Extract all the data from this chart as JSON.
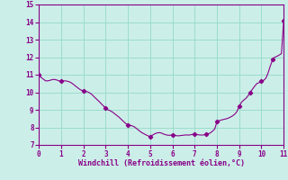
{
  "title": "",
  "xlabel": "Windchill (Refroidissement éolien,°C)",
  "ylabel": "",
  "xlim": [
    0,
    11
  ],
  "ylim": [
    7,
    15
  ],
  "xticks": [
    0,
    1,
    2,
    3,
    4,
    5,
    6,
    7,
    8,
    9,
    10,
    11
  ],
  "yticks": [
    7,
    8,
    9,
    10,
    11,
    12,
    13,
    14,
    15
  ],
  "background_color": "#cceee8",
  "grid_color": "#99ddcc",
  "line_color": "#880088",
  "marker_color": "#880088",
  "x": [
    0.0,
    0.1,
    0.2,
    0.3,
    0.4,
    0.5,
    0.6,
    0.7,
    0.8,
    0.9,
    1.0,
    1.1,
    1.2,
    1.3,
    1.4,
    1.5,
    1.6,
    1.7,
    1.8,
    1.9,
    2.0,
    2.1,
    2.2,
    2.3,
    2.4,
    2.5,
    2.6,
    2.7,
    2.8,
    2.9,
    3.0,
    3.1,
    3.2,
    3.3,
    3.4,
    3.5,
    3.6,
    3.7,
    3.8,
    3.9,
    4.0,
    4.1,
    4.2,
    4.3,
    4.4,
    4.5,
    4.6,
    4.7,
    4.8,
    4.9,
    5.0,
    5.1,
    5.2,
    5.3,
    5.4,
    5.5,
    5.6,
    5.7,
    5.8,
    5.9,
    6.0,
    6.1,
    6.2,
    6.3,
    6.4,
    6.5,
    6.6,
    6.7,
    6.8,
    6.9,
    7.0,
    7.1,
    7.2,
    7.3,
    7.4,
    7.5,
    7.6,
    7.7,
    7.8,
    7.9,
    8.0,
    8.1,
    8.2,
    8.3,
    8.4,
    8.5,
    8.6,
    8.7,
    8.8,
    8.9,
    9.0,
    9.1,
    9.2,
    9.3,
    9.4,
    9.5,
    9.6,
    9.7,
    9.8,
    9.9,
    10.0,
    10.1,
    10.2,
    10.3,
    10.4,
    10.5,
    10.6,
    10.7,
    10.8,
    10.9,
    11.0,
    11.1,
    11.2
  ],
  "y": [
    11.0,
    10.85,
    10.75,
    10.65,
    10.65,
    10.68,
    10.72,
    10.73,
    10.7,
    10.65,
    10.63,
    10.65,
    10.65,
    10.62,
    10.58,
    10.5,
    10.4,
    10.3,
    10.2,
    10.12,
    10.08,
    10.05,
    10.02,
    9.95,
    9.85,
    9.72,
    9.6,
    9.48,
    9.35,
    9.22,
    9.1,
    9.0,
    8.95,
    8.88,
    8.78,
    8.68,
    8.58,
    8.46,
    8.34,
    8.22,
    8.15,
    8.12,
    8.08,
    8.02,
    7.92,
    7.82,
    7.72,
    7.65,
    7.58,
    7.52,
    7.47,
    7.55,
    7.63,
    7.68,
    7.7,
    7.68,
    7.62,
    7.58,
    7.55,
    7.55,
    7.57,
    7.55,
    7.52,
    7.52,
    7.54,
    7.55,
    7.57,
    7.56,
    7.57,
    7.6,
    7.6,
    7.59,
    7.57,
    7.56,
    7.57,
    7.6,
    7.63,
    7.68,
    7.78,
    7.9,
    8.32,
    8.38,
    8.42,
    8.45,
    8.48,
    8.52,
    8.58,
    8.65,
    8.75,
    8.9,
    9.2,
    9.42,
    9.55,
    9.65,
    9.8,
    10.0,
    10.18,
    10.35,
    10.5,
    10.55,
    10.62,
    10.68,
    10.8,
    11.1,
    11.5,
    11.85,
    12.0,
    12.05,
    12.12,
    12.2,
    14.1,
    14.45,
    14.72
  ],
  "marker_x": [
    0.0,
    1.0,
    2.0,
    3.0,
    4.0,
    5.0,
    6.0,
    7.0,
    7.5,
    8.0,
    9.0,
    9.5,
    10.0,
    10.5,
    11.0,
    11.2
  ],
  "marker_y": [
    11.0,
    10.63,
    10.08,
    9.1,
    8.15,
    7.47,
    7.57,
    7.6,
    7.6,
    8.32,
    9.2,
    10.0,
    10.62,
    11.85,
    14.1,
    14.72
  ]
}
